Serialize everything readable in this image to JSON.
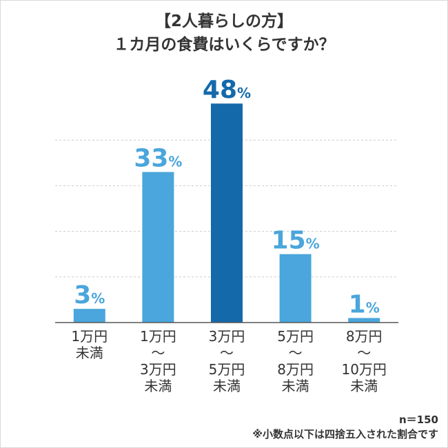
{
  "chart_data": {
    "type": "bar",
    "title_lines": [
      "【2人暮らしの方】",
      "１カ月の食費はいくらですか？"
    ],
    "categories": [
      [
        "1万円",
        "未満"
      ],
      [
        "1万円",
        "～",
        "3万円",
        "未満"
      ],
      [
        "3万円",
        "～",
        "5万円",
        "未満"
      ],
      [
        "5万円",
        "～",
        "8万円",
        "未満"
      ],
      [
        "8万円",
        "～",
        "10万円",
        "未満"
      ]
    ],
    "values": [
      3,
      33,
      48,
      15,
      1
    ],
    "value_unit": "%",
    "highlight_index": 2,
    "ylim": [
      0,
      50
    ],
    "gridlines": [
      10,
      20,
      30,
      40
    ],
    "colors": {
      "bar": "#4aa6dc",
      "highlight": "#1469ab",
      "grid": "#cccccc",
      "axis": "#555555",
      "text": "#333333"
    }
  },
  "footer": {
    "n": "n＝150",
    "note": "※小数点以下は四捨五入された割合です"
  }
}
